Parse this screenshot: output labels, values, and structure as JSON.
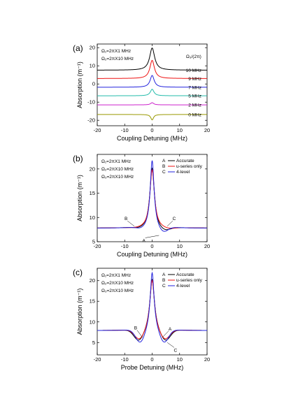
{
  "chart_data": [
    {
      "panel": "(a)",
      "type": "line",
      "xlabel": "Coupling Detuning (MHz)",
      "ylabel": "Absorption (m⁻¹)",
      "xlim": [
        -20,
        20
      ],
      "ylim": [
        -23,
        22
      ],
      "xticks": [
        -20,
        -10,
        0,
        10,
        20
      ],
      "yticks": [
        -20,
        -10,
        0,
        10,
        20
      ],
      "annotations": [
        "Ω₁=2πX1 MHz",
        "Ω₂=2πX10 MHz"
      ],
      "legend_title": "Ω₃/(2π)",
      "series": [
        {
          "name": "10 MHz",
          "color": "#000000",
          "baseline": 7.6,
          "amp": 12.2,
          "width": 1.1,
          "dip": 0
        },
        {
          "name": "9 MHz",
          "color": "#ee1111",
          "baseline": 3.0,
          "amp": 10.0,
          "width": 1.0,
          "dip": 0
        },
        {
          "name": "7 MHz",
          "color": "#2222dd",
          "baseline": -1.8,
          "amp": 6.5,
          "width": 0.9,
          "dip": 0
        },
        {
          "name": "5 MHz",
          "color": "#22bbaa",
          "baseline": -6.5,
          "amp": 3.6,
          "width": 0.8,
          "dip": 0
        },
        {
          "name": "2 MHz",
          "color": "#cc22cc",
          "baseline": -11.5,
          "amp": 1.2,
          "width": 0.7,
          "dip": 0
        },
        {
          "name": "0 MHz",
          "color": "#999900",
          "baseline": -16.8,
          "amp": -3.0,
          "width": 0.6,
          "dip": 0
        }
      ]
    },
    {
      "panel": "(b)",
      "type": "line",
      "xlabel": "Coupling Detuning (MHz)",
      "ylabel": "Absorption (m⁻¹)",
      "xlim": [
        -20,
        20
      ],
      "ylim": [
        5,
        23
      ],
      "xticks": [
        -20,
        -10,
        0,
        10,
        20
      ],
      "yticks": [
        5,
        10,
        15,
        20
      ],
      "annotations": [
        "Ω₁=2πX1 MHz",
        "Ω₂=2πX10 MHz",
        "Ω₃=2πX10 MHz"
      ],
      "point_labels": [
        "A",
        "B",
        "C"
      ],
      "series": [
        {
          "name": "Accurate",
          "key": "A",
          "color": "#000000",
          "baseline": 7.8,
          "amp": 12.4,
          "width": 1.0,
          "dip": 0.8,
          "dipc": 4.5,
          "dipw": 2.8,
          "dip_side": 1
        },
        {
          "name": "u-series only",
          "key": "B",
          "color": "#ee1111",
          "baseline": 7.8,
          "amp": 12.0,
          "width": 1.0,
          "dip": 0.3,
          "dipc": 6.0,
          "dipw": 3.0,
          "dip_side": 1
        },
        {
          "name": "4-level",
          "key": "C",
          "color": "#2222dd",
          "baseline": 7.8,
          "amp": 14.0,
          "width": 0.85,
          "dip": 1.2,
          "dipc": 4.0,
          "dipw": 2.3,
          "dip_side": 1
        }
      ]
    },
    {
      "panel": "(c)",
      "type": "line",
      "xlabel": "Probe Detuning (MHz)",
      "ylabel": "Absorption (m⁻¹)",
      "xlim": [
        -20,
        20
      ],
      "ylim": [
        2,
        23
      ],
      "xticks": [
        -20,
        -10,
        0,
        10,
        20
      ],
      "yticks": [
        5,
        10,
        15,
        20
      ],
      "annotations": [
        "Ω₁=2πX1 MHz",
        "Ω₂=2πX10 MHz",
        "Ω₃=2πX10 MHz"
      ],
      "point_labels": [
        "B",
        "A",
        "C"
      ],
      "series": [
        {
          "name": "Accurate",
          "key": "A",
          "color": "#000000",
          "baseline": 7.9,
          "amp": 12.5,
          "width": 1.0,
          "dip": 2.8,
          "dipc": 4.8,
          "dipw": 2.5,
          "dip_side": 2
        },
        {
          "name": "u-series only",
          "key": "B",
          "color": "#ee1111",
          "baseline": 7.9,
          "amp": 12.3,
          "width": 1.0,
          "dip": 2.5,
          "dipc": 4.6,
          "dipw": 2.5,
          "dip_side": 2
        },
        {
          "name": "4-level",
          "key": "C",
          "color": "#2222dd",
          "baseline": 7.9,
          "amp": 14.2,
          "width": 0.85,
          "dip": 3.3,
          "dipc": 4.3,
          "dipw": 2.3,
          "dip_side": 2
        }
      ]
    }
  ]
}
